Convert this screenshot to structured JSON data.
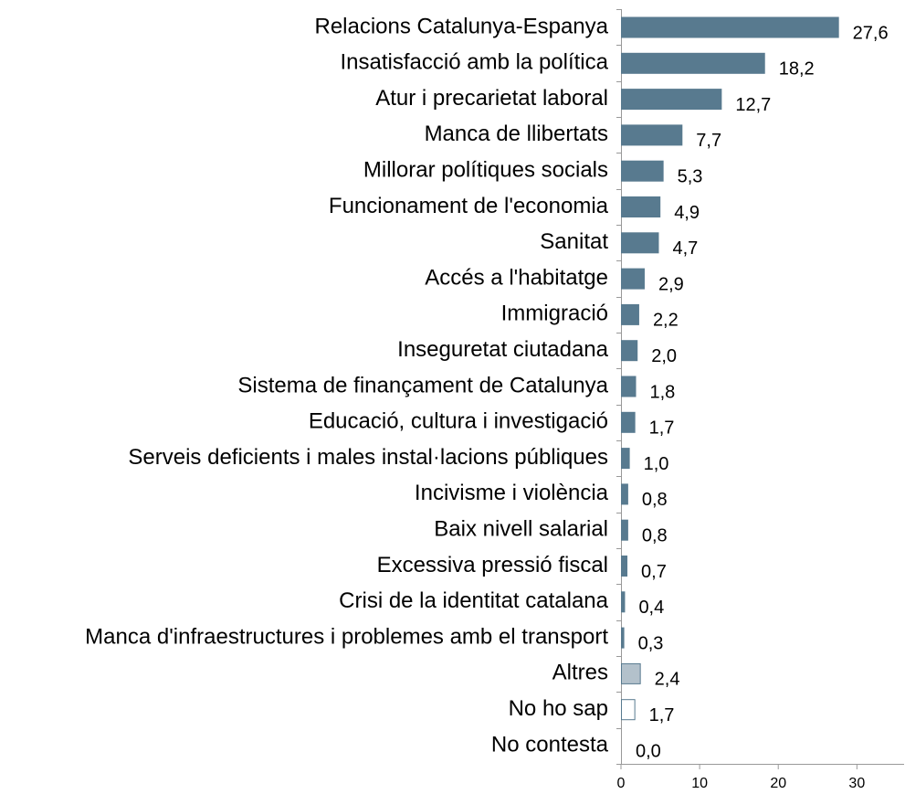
{
  "chart_data": {
    "type": "barh",
    "categories": [
      "Relacions Catalunya-Espanya",
      "Insatisfacció amb la política",
      "Atur i precarietat laboral",
      "Manca de llibertats",
      "Millorar polítiques socials",
      "Funcionament de l'economia",
      "Sanitat",
      "Accés a l'habitatge",
      "Immigració",
      "Inseguretat ciutadana",
      "Sistema de finançament de Catalunya",
      "Educació, cultura i investigació",
      "Serveis deficients i males instal·lacions públiques",
      "Incivisme i violència",
      "Baix nivell salarial",
      "Excessiva pressió fiscal",
      "Crisi de la identitat catalana",
      "Manca d'infraestructures i problemes amb el transport",
      "Altres",
      "No ho sap",
      "No contesta"
    ],
    "values": [
      27.6,
      18.2,
      12.7,
      7.7,
      5.3,
      4.9,
      4.7,
      2.9,
      2.2,
      2.0,
      1.8,
      1.7,
      1.0,
      0.8,
      0.8,
      0.7,
      0.4,
      0.3,
      2.4,
      1.7,
      0.0
    ],
    "value_labels": [
      "27,6",
      "18,2",
      "12,7",
      "7,7",
      "5,3",
      "4,9",
      "4,7",
      "2,9",
      "2,2",
      "2,0",
      "1,8",
      "1,7",
      "1,0",
      "0,8",
      "0,8",
      "0,7",
      "0,4",
      "0,3",
      "2,4",
      "1,7",
      "0,0"
    ],
    "colors": [
      "#587a8f",
      "#587a8f",
      "#587a8f",
      "#587a8f",
      "#587a8f",
      "#587a8f",
      "#587a8f",
      "#587a8f",
      "#587a8f",
      "#587a8f",
      "#587a8f",
      "#587a8f",
      "#587a8f",
      "#587a8f",
      "#587a8f",
      "#587a8f",
      "#587a8f",
      "#587a8f",
      "#b3c1cb",
      "#ffffff",
      "#587a8f"
    ],
    "edgecolor": "#587a8f",
    "xlim": [
      0,
      36
    ],
    "xticks": [
      0,
      10,
      20,
      30
    ]
  }
}
